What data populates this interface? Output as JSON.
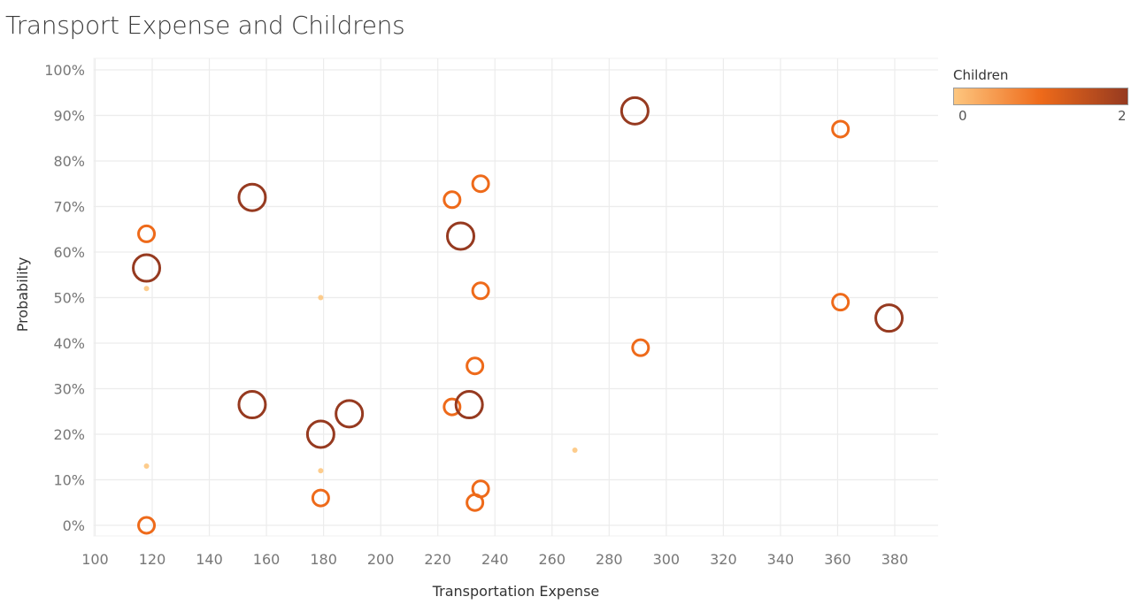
{
  "title": "Transport Expense and Childrens",
  "legend": {
    "title": "Children",
    "min_label": "0",
    "max_label": "2",
    "color_low": "#fdc67f",
    "color_mid": "#ee6a1a",
    "color_high": "#963a20"
  },
  "chart_data": {
    "type": "scatter",
    "title": "Transport Expense and Childrens",
    "xlabel": "Transportation Expense",
    "ylabel": "Probability",
    "xlim": [
      95,
      395
    ],
    "ylim": [
      -0.02,
      1.02
    ],
    "x_ticks": [
      100,
      120,
      140,
      160,
      180,
      200,
      220,
      240,
      260,
      280,
      300,
      320,
      340,
      360,
      380
    ],
    "y_ticks": [
      0,
      0.1,
      0.2,
      0.3,
      0.4,
      0.5,
      0.6,
      0.7,
      0.8,
      0.9,
      1.0
    ],
    "x_tick_labels": [
      "100",
      "120",
      "140",
      "160",
      "180",
      "200",
      "220",
      "240",
      "260",
      "280",
      "300",
      "320",
      "340",
      "360",
      "380"
    ],
    "y_tick_labels": [
      "0%",
      "10%",
      "20%",
      "30%",
      "40%",
      "50%",
      "60%",
      "70%",
      "80%",
      "90%",
      "100%"
    ],
    "color_encoding": "Children",
    "size_encoding": "Children",
    "grid": true,
    "legend_position": "top-right",
    "points": [
      {
        "x": 118,
        "y": 0.64,
        "children": 1
      },
      {
        "x": 118,
        "y": 0.565,
        "children": 2
      },
      {
        "x": 118,
        "y": 0.52,
        "children": 0
      },
      {
        "x": 118,
        "y": 0.13,
        "children": 0
      },
      {
        "x": 118,
        "y": 0.0,
        "children": 1
      },
      {
        "x": 155,
        "y": 0.72,
        "children": 2
      },
      {
        "x": 155,
        "y": 0.265,
        "children": 2
      },
      {
        "x": 179,
        "y": 0.2,
        "children": 2
      },
      {
        "x": 179,
        "y": 0.5,
        "children": 0
      },
      {
        "x": 179,
        "y": 0.12,
        "children": 0
      },
      {
        "x": 179,
        "y": 0.06,
        "children": 1
      },
      {
        "x": 189,
        "y": 0.245,
        "children": 2
      },
      {
        "x": 225,
        "y": 0.715,
        "children": 1
      },
      {
        "x": 225,
        "y": 0.26,
        "children": 1
      },
      {
        "x": 228,
        "y": 0.635,
        "children": 2
      },
      {
        "x": 231,
        "y": 0.265,
        "children": 2
      },
      {
        "x": 233,
        "y": 0.35,
        "children": 1
      },
      {
        "x": 233,
        "y": 0.05,
        "children": 1
      },
      {
        "x": 235,
        "y": 0.75,
        "children": 1
      },
      {
        "x": 235,
        "y": 0.515,
        "children": 1
      },
      {
        "x": 235,
        "y": 0.08,
        "children": 1
      },
      {
        "x": 268,
        "y": 0.165,
        "children": 0
      },
      {
        "x": 289,
        "y": 0.91,
        "children": 2
      },
      {
        "x": 291,
        "y": 0.39,
        "children": 1
      },
      {
        "x": 361,
        "y": 0.87,
        "children": 1
      },
      {
        "x": 361,
        "y": 0.49,
        "children": 1
      },
      {
        "x": 378,
        "y": 0.455,
        "children": 2
      }
    ]
  }
}
